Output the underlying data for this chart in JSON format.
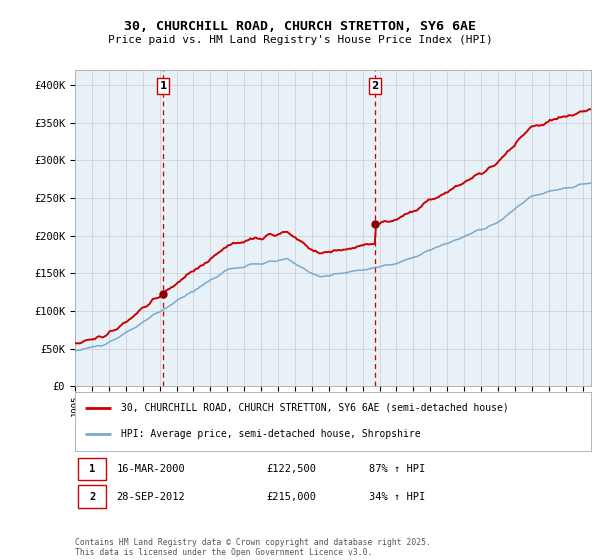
{
  "title": "30, CHURCHILL ROAD, CHURCH STRETTON, SY6 6AE",
  "subtitle": "Price paid vs. HM Land Registry's House Price Index (HPI)",
  "ylabel_ticks": [
    "£0",
    "£50K",
    "£100K",
    "£150K",
    "£200K",
    "£250K",
    "£300K",
    "£350K",
    "£400K"
  ],
  "ytick_values": [
    0,
    50000,
    100000,
    150000,
    200000,
    250000,
    300000,
    350000,
    400000
  ],
  "ylim": [
    0,
    420000
  ],
  "xlim_start": 1995.0,
  "xlim_end": 2025.5,
  "sale1_year": 2000.21,
  "sale1_price": 122500,
  "sale2_year": 2012.74,
  "sale2_price": 215000,
  "legend_line1": "30, CHURCHILL ROAD, CHURCH STRETTON, SY6 6AE (semi-detached house)",
  "legend_line2": "HPI: Average price, semi-detached house, Shropshire",
  "footer": "Contains HM Land Registry data © Crown copyright and database right 2025.\nThis data is licensed under the Open Government Licence v3.0.",
  "line1_color": "#cc0000",
  "line2_color": "#7aaacc",
  "marker_color": "#880000",
  "vline_color": "#cc0000",
  "grid_color": "#cccccc",
  "background_color": "#ffffff",
  "plot_bg_color": "#e8f0f8"
}
